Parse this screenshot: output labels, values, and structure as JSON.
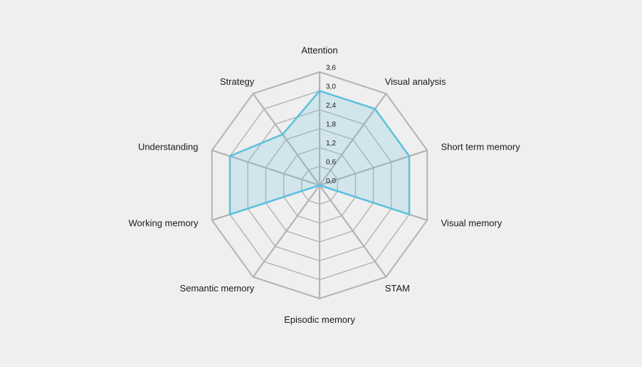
{
  "chart_data": {
    "type": "radar",
    "title": "",
    "axes": [
      "Attention",
      "Visual analysis",
      "Short term memory",
      "Visual memory",
      "STAM",
      "Episodic memory",
      "Semantic memory",
      "Working memory",
      "Understanding",
      "Strategy"
    ],
    "tick_labels": [
      "0,0",
      "0,6",
      "1,2",
      "1,8",
      "2,4",
      "3,0",
      "3,6"
    ],
    "ticks": [
      0,
      0.6,
      1.2,
      1.8,
      2.4,
      3.0,
      3.6
    ],
    "range": [
      0,
      3.6
    ],
    "series": [
      {
        "values": [
          3.0,
          3.0,
          3.0,
          3.0,
          0,
          0,
          0,
          3.0,
          3.0,
          2.0
        ],
        "color": "#5bc0de"
      }
    ],
    "grid_color": "#b3b3b3",
    "grid": true,
    "legend": false
  }
}
